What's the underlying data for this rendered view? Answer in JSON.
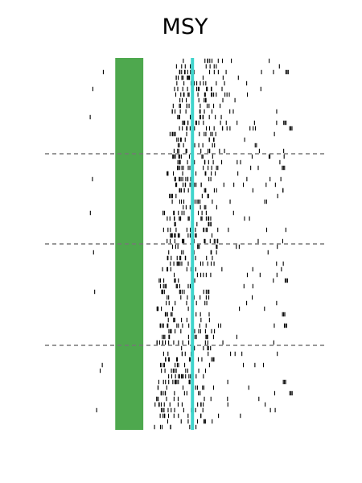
{
  "chart_data": {
    "type": "raster",
    "title": "MSY",
    "xlabel": "",
    "ylabel": "",
    "grid": false,
    "colors": {
      "band": "#4ea84e",
      "event_line": "#40d4cc",
      "spike": "#000000",
      "divider": "#777777"
    },
    "band": {
      "x_start": 0.3,
      "x_end": 0.42
    },
    "event_line_x": 0.63,
    "x_range": [
      0,
      1.2
    ],
    "trial_count": 66,
    "group_dividers_after_trial": [
      17,
      33,
      51
    ]
  }
}
